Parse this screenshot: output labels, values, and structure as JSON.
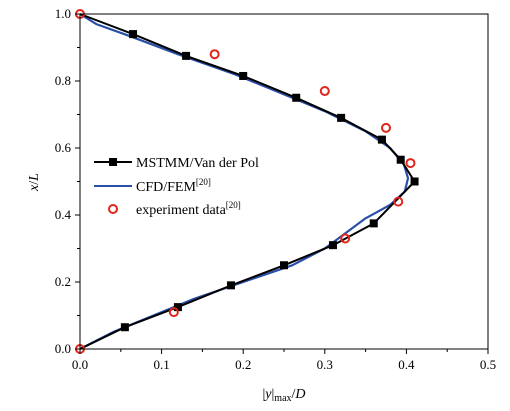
{
  "chart_data": {
    "type": "line",
    "xlabel": "|y|max/D",
    "xlabel_parts": {
      "a": "|",
      "b": "y",
      "c": "|",
      "sub": "max",
      "d": "/",
      "e": "D"
    },
    "ylabel": "x/L",
    "ylabel_parts": {
      "a": "x",
      "b": "/",
      "c": "L"
    },
    "xlim": [
      0.0,
      0.5
    ],
    "ylim": [
      0.0,
      1.0
    ],
    "xticks": [
      "0.0",
      "0.1",
      "0.2",
      "0.3",
      "0.4",
      "0.5"
    ],
    "yticks": [
      "0.0",
      "0.2",
      "0.4",
      "0.6",
      "0.8",
      "1.0"
    ],
    "grid": false,
    "legend_position": "center-left",
    "series": [
      {
        "name": "MSTMM/Van der Pol",
        "legend_label": "MSTMM/Van der Pol",
        "style": "line-square",
        "color": "#000000",
        "points": [
          [
            0.0,
            1.0
          ],
          [
            0.065,
            0.94
          ],
          [
            0.13,
            0.875
          ],
          [
            0.2,
            0.815
          ],
          [
            0.265,
            0.75
          ],
          [
            0.32,
            0.69
          ],
          [
            0.37,
            0.625
          ],
          [
            0.393,
            0.565
          ],
          [
            0.41,
            0.5
          ],
          [
            0.36,
            0.375
          ],
          [
            0.31,
            0.31
          ],
          [
            0.25,
            0.25
          ],
          [
            0.185,
            0.19
          ],
          [
            0.12,
            0.125
          ],
          [
            0.055,
            0.065
          ],
          [
            0.0,
            0.0
          ]
        ],
        "marker_points": [
          [
            0.065,
            0.94
          ],
          [
            0.13,
            0.875
          ],
          [
            0.2,
            0.815
          ],
          [
            0.265,
            0.75
          ],
          [
            0.32,
            0.69
          ],
          [
            0.37,
            0.625
          ],
          [
            0.393,
            0.565
          ],
          [
            0.41,
            0.5
          ],
          [
            0.36,
            0.375
          ],
          [
            0.31,
            0.31
          ],
          [
            0.25,
            0.25
          ],
          [
            0.185,
            0.19
          ],
          [
            0.12,
            0.125
          ],
          [
            0.055,
            0.065
          ]
        ]
      },
      {
        "name": "CFD/FEM[20]",
        "legend_label": "CFD/FEM",
        "legend_sup": "[20]",
        "style": "line",
        "color": "#2a4fa8",
        "points": [
          [
            0.0,
            1.0
          ],
          [
            0.02,
            0.97
          ],
          [
            0.06,
            0.935
          ],
          [
            0.12,
            0.88
          ],
          [
            0.19,
            0.82
          ],
          [
            0.25,
            0.76
          ],
          [
            0.3,
            0.71
          ],
          [
            0.35,
            0.65
          ],
          [
            0.38,
            0.6
          ],
          [
            0.397,
            0.55
          ],
          [
            0.402,
            0.51
          ],
          [
            0.398,
            0.47
          ],
          [
            0.38,
            0.43
          ],
          [
            0.35,
            0.39
          ],
          [
            0.3,
            0.3
          ],
          [
            0.26,
            0.25
          ],
          [
            0.2,
            0.2
          ],
          [
            0.14,
            0.15
          ],
          [
            0.09,
            0.1
          ],
          [
            0.04,
            0.05
          ],
          [
            0.0,
            0.0
          ]
        ]
      },
      {
        "name": "experiment data[20]",
        "legend_label": "experiment data",
        "legend_sup": "[20]",
        "style": "open-circle",
        "color": "#e0251b",
        "points": [
          [
            0.0,
            1.0
          ],
          [
            0.165,
            0.88
          ],
          [
            0.3,
            0.77
          ],
          [
            0.375,
            0.66
          ],
          [
            0.405,
            0.555
          ],
          [
            0.39,
            0.44
          ],
          [
            0.325,
            0.33
          ],
          [
            0.115,
            0.11
          ],
          [
            0.0,
            0.0
          ]
        ]
      }
    ]
  }
}
